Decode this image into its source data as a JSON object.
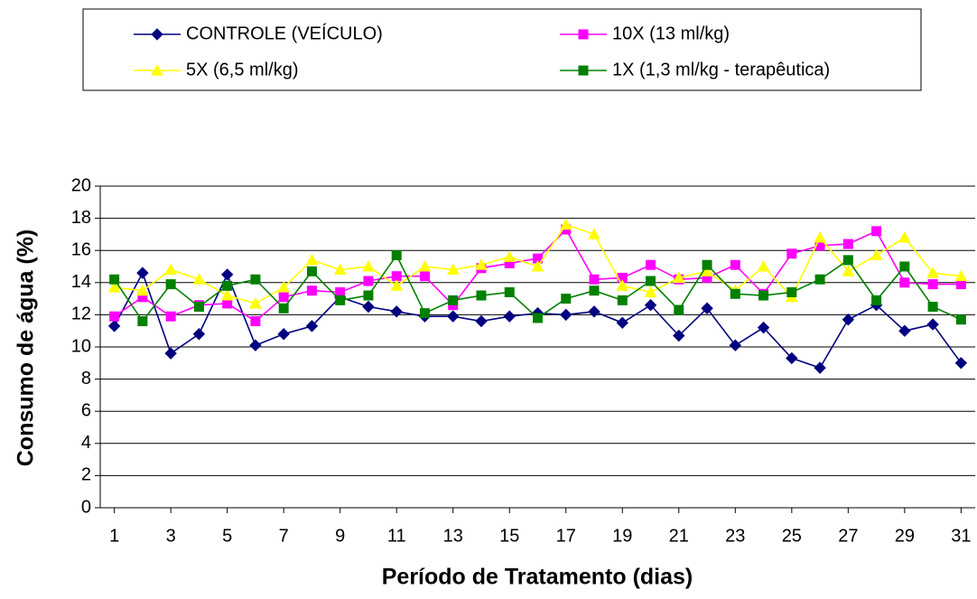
{
  "chart_data": {
    "type": "line",
    "x": [
      1,
      2,
      3,
      4,
      5,
      6,
      7,
      8,
      9,
      10,
      11,
      12,
      13,
      14,
      15,
      16,
      17,
      18,
      19,
      20,
      21,
      22,
      23,
      24,
      25,
      26,
      27,
      28,
      29,
      30,
      31
    ],
    "xlim": [
      0.5,
      31.5
    ],
    "xticks": [
      1,
      3,
      5,
      7,
      9,
      11,
      13,
      15,
      17,
      19,
      21,
      23,
      25,
      27,
      29,
      31
    ],
    "ylim": [
      0,
      20
    ],
    "yticks": [
      0,
      2,
      4,
      6,
      8,
      10,
      12,
      14,
      16,
      18,
      20
    ],
    "grid": true,
    "xlabel": "Período de Tratamento (dias)",
    "ylabel": "Consumo de água (%)",
    "legend": "top",
    "series": [
      {
        "name": "CONTROLE (VEÍCULO)",
        "color": "#000080",
        "marker": "diamond",
        "values": [
          11.3,
          14.6,
          9.6,
          10.8,
          14.5,
          10.1,
          10.8,
          11.3,
          13.1,
          12.5,
          12.2,
          11.9,
          11.9,
          11.6,
          11.9,
          12.1,
          12.0,
          12.2,
          11.5,
          12.6,
          10.7,
          12.4,
          10.1,
          11.2,
          9.3,
          8.7,
          11.7,
          12.6,
          11.0,
          11.4,
          9.0
        ]
      },
      {
        "name": "10X (13 ml/kg)",
        "color": "#ff00ff",
        "marker": "square",
        "values": [
          11.9,
          13.1,
          11.9,
          12.6,
          12.7,
          11.6,
          13.1,
          13.5,
          13.4,
          14.1,
          14.4,
          14.4,
          12.6,
          14.9,
          15.2,
          15.5,
          17.3,
          14.2,
          14.3,
          15.1,
          14.2,
          14.3,
          15.1,
          13.3,
          15.8,
          16.3,
          16.4,
          17.2,
          14.0,
          13.9,
          13.9
        ]
      },
      {
        "name": "5X (6,5 ml/kg)",
        "color": "#ffff00",
        "marker": "triangle",
        "values": [
          13.7,
          13.5,
          14.8,
          14.2,
          13.2,
          12.7,
          13.7,
          15.4,
          14.8,
          15.0,
          13.8,
          15.0,
          14.8,
          15.1,
          15.6,
          15.0,
          17.6,
          17.0,
          13.8,
          13.4,
          14.3,
          14.7,
          13.5,
          15.0,
          13.1,
          16.8,
          14.7,
          15.7,
          16.8,
          14.6,
          14.4
        ]
      },
      {
        "name": "1X (1,3 ml/kg - terapêutica)",
        "color": "#008000",
        "marker": "square",
        "values": [
          14.2,
          11.6,
          13.9,
          12.5,
          13.8,
          14.2,
          12.4,
          14.7,
          12.9,
          13.2,
          15.7,
          12.1,
          12.9,
          13.2,
          13.4,
          11.8,
          13.0,
          13.5,
          12.9,
          14.1,
          12.3,
          15.1,
          13.3,
          13.2,
          13.4,
          14.2,
          15.4,
          12.9,
          15.0,
          12.5,
          11.7
        ]
      }
    ]
  }
}
